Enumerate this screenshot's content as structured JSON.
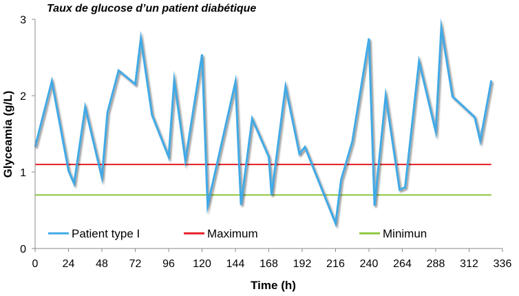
{
  "chart_data": {
    "type": "line",
    "title": "Taux de glucose d’un patient diabétique",
    "xlabel": "Time (h)",
    "ylabel": "Glyceamia (g/L)",
    "xlim": [
      0,
      336
    ],
    "ylim": [
      0,
      3
    ],
    "x_ticks": [
      0,
      24,
      48,
      72,
      96,
      120,
      144,
      168,
      192,
      216,
      240,
      264,
      288,
      312,
      336
    ],
    "y_ticks": [
      0,
      1,
      2,
      3
    ],
    "grid": false,
    "legend_position": "bottom",
    "series": [
      {
        "name": "Patient type I",
        "color": "#3FA9E6",
        "style": "shadowed",
        "points": [
          [
            0,
            1.33
          ],
          [
            12,
            2.19
          ],
          [
            24,
            1.02
          ],
          [
            28,
            0.85
          ],
          [
            36,
            1.85
          ],
          [
            48,
            0.93
          ],
          [
            52,
            1.78
          ],
          [
            60,
            2.33
          ],
          [
            72,
            2.15
          ],
          [
            76,
            2.75
          ],
          [
            84,
            1.75
          ],
          [
            96,
            1.2
          ],
          [
            100,
            2.2
          ],
          [
            108,
            1.15
          ],
          [
            120,
            2.54
          ],
          [
            124,
            0.56
          ],
          [
            144,
            2.18
          ],
          [
            148,
            0.57
          ],
          [
            156,
            1.7
          ],
          [
            168,
            1.2
          ],
          [
            170,
            0.7
          ],
          [
            180,
            2.12
          ],
          [
            190,
            1.24
          ],
          [
            194,
            1.33
          ],
          [
            216,
            0.33
          ],
          [
            220,
            0.9
          ],
          [
            228,
            1.4
          ],
          [
            240,
            2.75
          ],
          [
            244,
            0.56
          ],
          [
            252,
            2.0
          ],
          [
            262,
            0.77
          ],
          [
            266,
            0.8
          ],
          [
            276,
            2.45
          ],
          [
            288,
            1.53
          ],
          [
            292,
            2.89
          ],
          [
            300,
            1.99
          ],
          [
            316,
            1.72
          ],
          [
            320,
            1.41
          ],
          [
            328,
            2.2
          ]
        ]
      },
      {
        "name": "Maximum",
        "color": "#E31E24",
        "points": [
          [
            0,
            1.1
          ],
          [
            328,
            1.1
          ]
        ]
      },
      {
        "name": "Minimun",
        "color": "#8DC63F",
        "points": [
          [
            0,
            0.7
          ],
          [
            328,
            0.7
          ]
        ]
      }
    ]
  }
}
